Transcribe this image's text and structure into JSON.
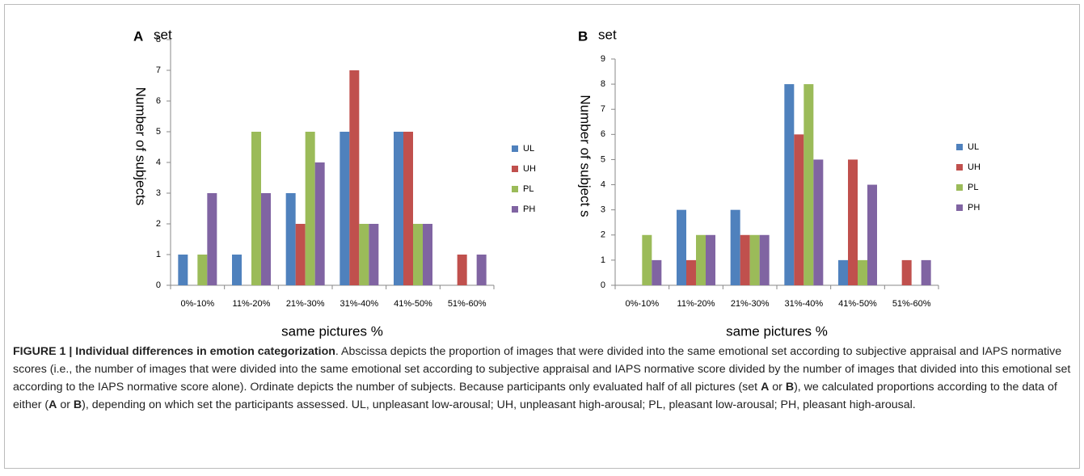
{
  "chart_data": [
    {
      "type": "bar",
      "panel": "A",
      "title": "set",
      "categories": [
        "0%-10%",
        "11%-20%",
        "21%-30%",
        "31%-40%",
        "41%-50%",
        "51%-60%"
      ],
      "series": [
        {
          "name": "UL",
          "color": "#4f81bd",
          "values": [
            1,
            1,
            3,
            5,
            5,
            0
          ]
        },
        {
          "name": "UH",
          "color": "#c0504d",
          "values": [
            0,
            0,
            2,
            7,
            5,
            1
          ]
        },
        {
          "name": "PL",
          "color": "#9bbb59",
          "values": [
            1,
            5,
            5,
            2,
            2,
            0
          ]
        },
        {
          "name": "PH",
          "color": "#8064a2",
          "values": [
            3,
            3,
            4,
            2,
            2,
            1
          ]
        }
      ],
      "ylim": [
        0,
        8
      ],
      "yticks": [
        0,
        1,
        2,
        3,
        4,
        5,
        6,
        7,
        8
      ],
      "x_label": "same pictures %",
      "y_label": "Number of subjects",
      "legend": "right"
    },
    {
      "type": "bar",
      "panel": "B",
      "title": "set",
      "categories": [
        "0%-10%",
        "11%-20%",
        "21%-30%",
        "31%-40%",
        "41%-50%",
        "51%-60%"
      ],
      "series": [
        {
          "name": "UL",
          "color": "#4f81bd",
          "values": [
            0,
            3,
            3,
            8,
            1,
            0
          ]
        },
        {
          "name": "UH",
          "color": "#c0504d",
          "values": [
            0,
            1,
            2,
            6,
            5,
            1
          ]
        },
        {
          "name": "PL",
          "color": "#9bbb59",
          "values": [
            2,
            2,
            2,
            8,
            1,
            0
          ]
        },
        {
          "name": "PH",
          "color": "#8064a2",
          "values": [
            1,
            2,
            2,
            5,
            4,
            1
          ]
        }
      ],
      "ylim": [
        0,
        9
      ],
      "yticks": [
        0,
        1,
        2,
        3,
        4,
        5,
        6,
        7,
        8,
        9
      ],
      "x_label": "same pictures %",
      "y_label": "Number of subject s",
      "legend": "right"
    }
  ],
  "caption": [
    "FIGURE 1 | Individual differences in emotion categorization",
    ". Abscissa depicts the proportion of images that were divided into the same emotional set according to subjective appraisal and IAPS normative scores (i.e., the number of images that were divided into the same emotional set according to subjective appraisal and IAPS normative score divided by the number of images that divided into this emotional set according to the IAPS normative score alone). Ordinate depicts the number of subjects. Because participants only evaluated half of all pictures (set ",
    "A",
    " or ",
    "B",
    "), we calculated proportions according to the data of either (",
    "A",
    " or ",
    "B",
    "), depending on which set the participants assessed. UL, unpleasant low-arousal; UH, unpleasant high-arousal; PL, pleasant low-arousal; PH, pleasant high-arousal."
  ]
}
